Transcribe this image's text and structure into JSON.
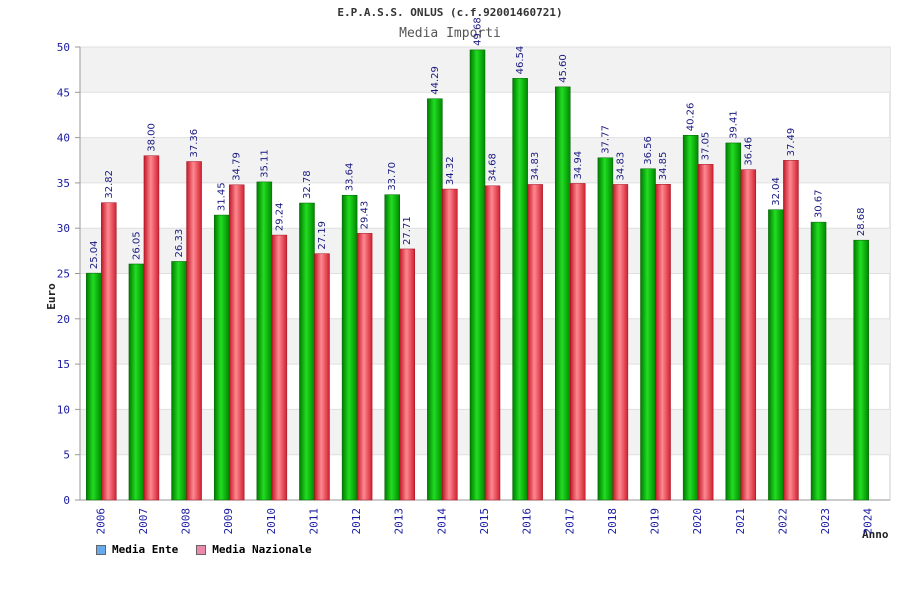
{
  "title": "E.P.A.S.S. ONLUS (c.f.92001460721)",
  "subtitle": "Media Importi",
  "legend": [
    {
      "name": "Media Ente",
      "color": "#66aaee"
    },
    {
      "name": "Media Nazionale",
      "color": "#ee88aa"
    }
  ],
  "chart_data": {
    "type": "bar",
    "title": "E.P.A.S.S. ONLUS (c.f.92001460721)",
    "subtitle": "Media Importi",
    "xlabel": "Anno",
    "ylabel": "Euro",
    "ylim": [
      0,
      50
    ],
    "yticks": [
      0,
      5,
      10,
      15,
      20,
      25,
      30,
      35,
      40,
      45,
      50
    ],
    "grid": true,
    "legend_position": "bottom-left",
    "categories": [
      "2006",
      "2007",
      "2008",
      "2009",
      "2010",
      "2011",
      "2012",
      "2013",
      "2014",
      "2015",
      "2016",
      "2017",
      "2018",
      "2019",
      "2020",
      "2021",
      "2022",
      "2023",
      "2024"
    ],
    "series": [
      {
        "name": "Media Ente",
        "color": "#00b000",
        "values": [
          25.04,
          26.05,
          26.33,
          31.45,
          35.11,
          32.78,
          33.64,
          33.7,
          44.29,
          49.68,
          46.54,
          45.6,
          37.77,
          36.56,
          40.26,
          39.41,
          32.04,
          30.67,
          28.68
        ],
        "labels": [
          "25.04",
          "26.05",
          "26.33",
          "31.45",
          "35.11",
          "32.78",
          "33.64",
          "33.70",
          "44.29",
          "49.68",
          "46.54",
          "45.60",
          "37.77",
          "36.56",
          "40.26",
          "39.41",
          "32.04",
          "30.67",
          "28.68"
        ]
      },
      {
        "name": "Media Nazionale",
        "color": "#e83040",
        "values": [
          32.82,
          38.0,
          37.36,
          34.79,
          29.24,
          27.19,
          29.43,
          27.71,
          34.32,
          34.68,
          34.83,
          34.94,
          34.83,
          34.85,
          37.05,
          36.46,
          37.49,
          null,
          null
        ],
        "labels": [
          "32.82",
          "38.00",
          "37.36",
          "34.79",
          "29.24",
          "27.19",
          "29.43",
          "27.71",
          "34.32",
          "34.68",
          "34.83",
          "34.94",
          "34.83",
          "34.85",
          "37.05",
          "36.46",
          "37.49",
          "",
          ""
        ]
      }
    ]
  }
}
